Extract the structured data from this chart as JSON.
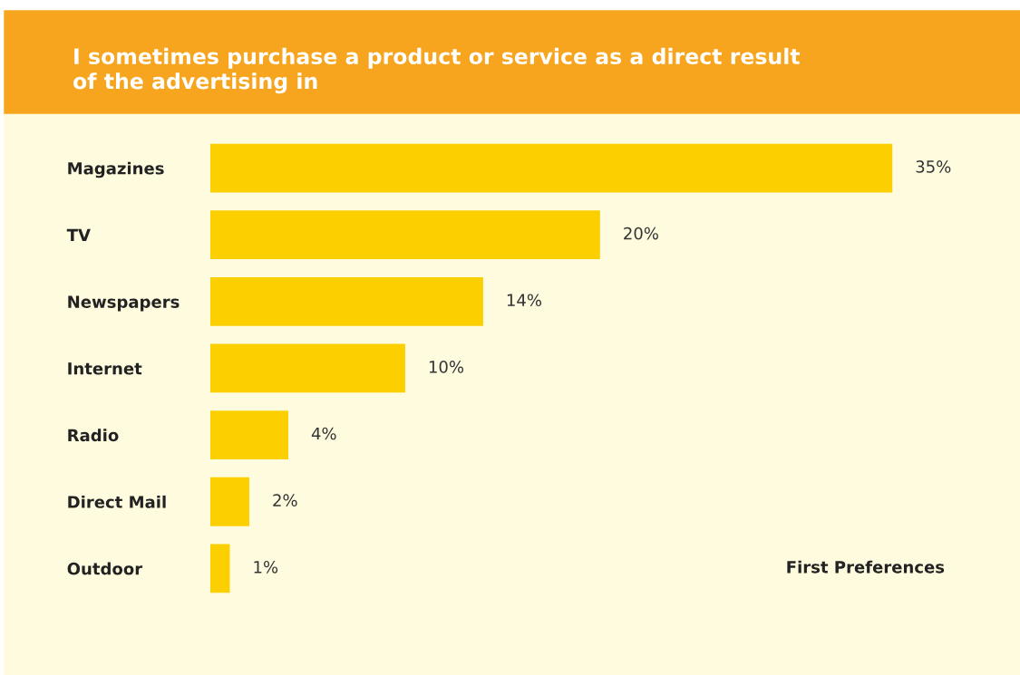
{
  "chart_data": {
    "type": "bar",
    "orientation": "horizontal",
    "title": "I sometimes purchase a product or service as a direct result\nof the advertising in",
    "categories": [
      "Magazines",
      "TV",
      "Newspapers",
      "Internet",
      "Radio",
      "Direct Mail",
      "Outdoor"
    ],
    "values": [
      35,
      20,
      14,
      10,
      4,
      2,
      1
    ],
    "value_labels": [
      "35%",
      "20%",
      "14%",
      "10%",
      "4%",
      "2%",
      "1%"
    ],
    "color": "#fcd000",
    "annotations": [
      "First Preferences"
    ],
    "grid": false,
    "legend": false,
    "tick_labels": "y"
  }
}
